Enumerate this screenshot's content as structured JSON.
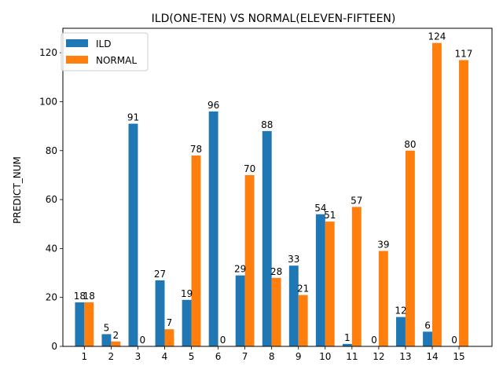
{
  "chart_data": {
    "type": "bar",
    "title": "ILD(ONE-TEN) VS NORMAL(ELEVEN-FIFTEEN)",
    "xlabel": "",
    "ylabel": "PREDICT_NUM",
    "categories": [
      "1",
      "2",
      "3",
      "4",
      "5",
      "6",
      "7",
      "8",
      "9",
      "10",
      "11",
      "12",
      "13",
      "14",
      "15"
    ],
    "series": [
      {
        "name": "ILD",
        "color": "#1f77b4",
        "values": [
          18,
          5,
          91,
          27,
          19,
          96,
          29,
          88,
          33,
          54,
          1,
          0,
          12,
          6,
          0
        ]
      },
      {
        "name": "NORMAL",
        "color": "#ff7f0e",
        "values": [
          18,
          2,
          0,
          7,
          78,
          0,
          70,
          28,
          21,
          51,
          57,
          39,
          80,
          124,
          117
        ]
      }
    ],
    "ylim": [
      0,
      130
    ],
    "yticks": [
      0,
      20,
      40,
      60,
      80,
      100,
      120
    ],
    "grid": false,
    "legend": "top-left",
    "data_labels": true
  }
}
